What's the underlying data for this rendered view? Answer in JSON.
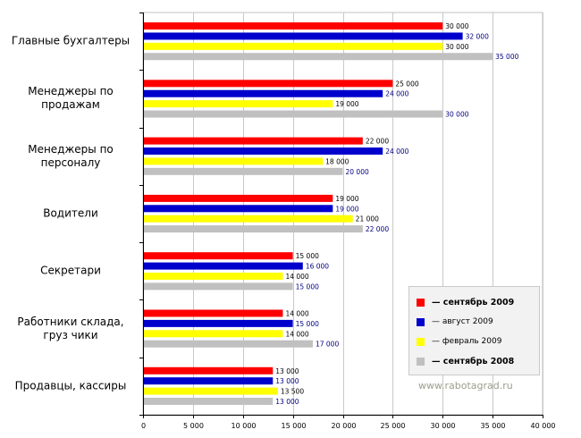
{
  "chart_data": {
    "type": "bar",
    "orientation": "horizontal",
    "categories": [
      [
        "Главные бухгалтеры"
      ],
      [
        "Менеджеры по",
        "продажам"
      ],
      [
        "Менеджеры по",
        "персоналу"
      ],
      [
        "Водители"
      ],
      [
        "Секретари"
      ],
      [
        "Работники склада,",
        "груз чики"
      ],
      [
        "Продавцы, кассиры"
      ]
    ],
    "series": [
      {
        "name": "— сентябрь 2009",
        "color": "#ff0000",
        "label_color": "#000000",
        "values": [
          30000,
          25000,
          22000,
          19000,
          15000,
          14000,
          13000
        ],
        "labels": [
          "30 000",
          "25 000",
          "22 000",
          "19 000",
          "15 000",
          "14 000",
          "13 000"
        ]
      },
      {
        "name": "— август 2009",
        "color": "#0000cc",
        "label_color": "#000080",
        "values": [
          32000,
          24000,
          24000,
          19000,
          16000,
          15000,
          13000
        ],
        "labels": [
          "32 000",
          "24 000",
          "24 000",
          "19 000",
          "16 000",
          "15 000",
          "13 000"
        ]
      },
      {
        "name": "— февраль 2009",
        "color": "#ffff00",
        "label_color": "#000000",
        "values": [
          30000,
          19000,
          18000,
          21000,
          14000,
          14000,
          13500
        ],
        "labels": [
          "30 000",
          "19 000",
          "18 000",
          "21 000",
          "14 000",
          "14 000",
          "13 500"
        ]
      },
      {
        "name": "— сентябрь 2008",
        "color": "#c0c0c0",
        "label_color": "#000080",
        "values": [
          35000,
          30000,
          20000,
          22000,
          15000,
          17000,
          13000
        ],
        "labels": [
          "35 000",
          "30 000",
          "20 000",
          "22 000",
          "15 000",
          "17 000",
          "13 000"
        ]
      }
    ],
    "xlim": [
      0,
      40000
    ],
    "xticks": [
      0,
      5000,
      10000,
      15000,
      20000,
      25000,
      30000,
      35000,
      40000
    ],
    "xtick_labels": [
      "0",
      "5 000",
      "10 000",
      "15 000",
      "20 000",
      "25 000",
      "30 000",
      "35 000",
      "40 000"
    ],
    "grid": true,
    "legend_position": "bottom-right",
    "title": "",
    "xlabel": "",
    "ylabel": ""
  },
  "legend": {
    "bold_items": [
      0,
      3
    ]
  },
  "watermark": "www.rabotagrad.ru"
}
